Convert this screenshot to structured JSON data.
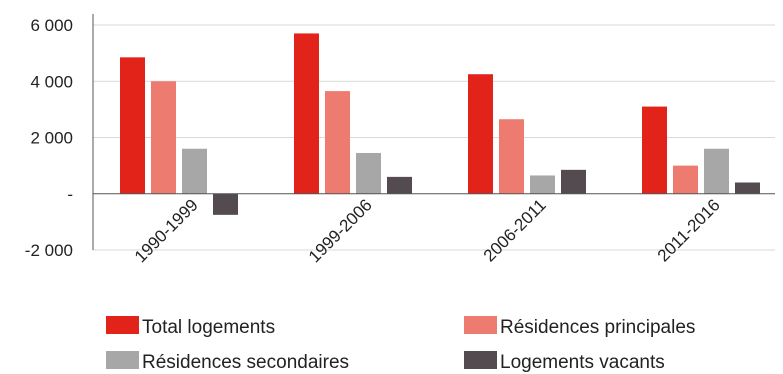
{
  "chart_data": {
    "type": "bar",
    "categories": [
      "1990-1999",
      "1999-2006",
      "2006-2011",
      "2011-2016"
    ],
    "series": [
      {
        "name": "Total logements",
        "values": [
          4850,
          5700,
          4250,
          3100
        ],
        "color": "#e2231a"
      },
      {
        "name": "Résidences principales",
        "values": [
          4000,
          3650,
          2650,
          1000
        ],
        "color": "#ee7b70"
      },
      {
        "name": "Résidences secondaires",
        "values": [
          1600,
          1450,
          650,
          1600
        ],
        "color": "#a7a7a7"
      },
      {
        "name": "Logements vacants",
        "values": [
          -750,
          600,
          850,
          400
        ],
        "color": "#534b4f"
      }
    ],
    "y_ticks": [
      {
        "value": -2000,
        "label": "-2 000"
      },
      {
        "value": 0,
        "label": "-"
      },
      {
        "value": 2000,
        "label": "2 000"
      },
      {
        "value": 4000,
        "label": "4 000"
      },
      {
        "value": 6000,
        "label": "6 000"
      }
    ],
    "ylim": [
      -2000,
      6000
    ],
    "grid": true,
    "legend_position": "bottom",
    "title": "",
    "xlabel": "",
    "ylabel": ""
  }
}
